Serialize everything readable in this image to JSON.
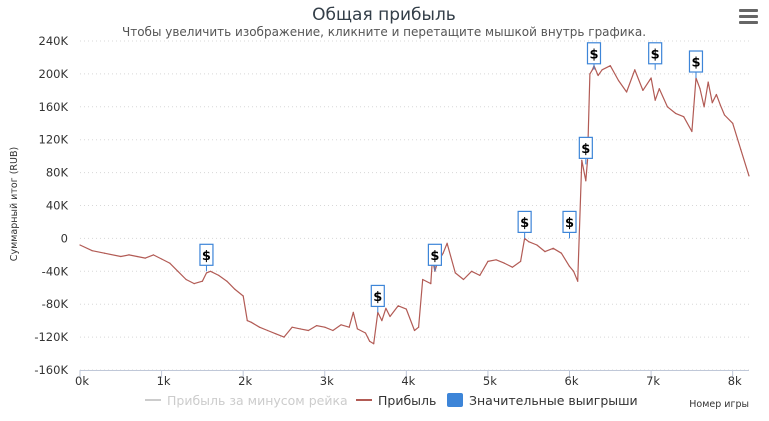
{
  "chart_data": {
    "type": "line",
    "title": "Общая прибыль",
    "subtitle": "Чтобы увеличить изображение, кликните и перетащите мышкой внутрь графика.",
    "xlabel": "Номер игры",
    "ylabel": "Суммарный итог (RUB)",
    "xlim": [
      0,
      8200
    ],
    "ylim": [
      -160000,
      240000
    ],
    "x_ticks": [
      0,
      1000,
      2000,
      3000,
      4000,
      5000,
      6000,
      7000,
      8000
    ],
    "x_tick_labels": [
      "0k",
      "1k",
      "2k",
      "3k",
      "4k",
      "5k",
      "6k",
      "7k",
      "8k"
    ],
    "y_ticks": [
      -160000,
      -120000,
      -80000,
      -40000,
      0,
      40000,
      80000,
      120000,
      160000,
      200000,
      240000
    ],
    "y_tick_labels": [
      "-160K",
      "-120K",
      "-80K",
      "-40K",
      "0",
      "40K",
      "80K",
      "120K",
      "160K",
      "200K",
      "240K"
    ],
    "grid": true,
    "legend_position": "bottom",
    "series": [
      {
        "name": "Прибыль за минусом рейка",
        "visible": false,
        "color": "#cccccc",
        "x": [],
        "y": []
      },
      {
        "name": "Прибыль",
        "visible": true,
        "color": "#b25b55",
        "x": [
          0,
          150,
          300,
          500,
          600,
          700,
          800,
          900,
          1000,
          1100,
          1200,
          1300,
          1400,
          1500,
          1550,
          1600,
          1700,
          1800,
          1900,
          2000,
          2050,
          2100,
          2200,
          2300,
          2400,
          2500,
          2600,
          2700,
          2800,
          2900,
          3000,
          3100,
          3200,
          3300,
          3350,
          3400,
          3500,
          3550,
          3600,
          3650,
          3700,
          3750,
          3800,
          3900,
          4000,
          4100,
          4150,
          4200,
          4300,
          4320,
          4350,
          4380,
          4450,
          4500,
          4600,
          4700,
          4800,
          4900,
          5000,
          5100,
          5200,
          5300,
          5400,
          5450,
          5500,
          5600,
          5700,
          5800,
          5900,
          6000,
          6050,
          6100,
          6150,
          6200,
          6220,
          6250,
          6280,
          6300,
          6350,
          6400,
          6500,
          6600,
          6700,
          6800,
          6900,
          7000,
          7050,
          7100,
          7200,
          7300,
          7400,
          7500,
          7550,
          7600,
          7650,
          7700,
          7750,
          7800,
          7850,
          7900,
          8000,
          8100,
          8200
        ],
        "y": [
          -8000,
          -15000,
          -18000,
          -22000,
          -20000,
          -22000,
          -24000,
          -20000,
          -25000,
          -30000,
          -40000,
          -50000,
          -55000,
          -52000,
          -42000,
          -40000,
          -45000,
          -52000,
          -62000,
          -70000,
          -100000,
          -102000,
          -108000,
          -112000,
          -116000,
          -120000,
          -108000,
          -110000,
          -112000,
          -106000,
          -108000,
          -112000,
          -105000,
          -108000,
          -90000,
          -110000,
          -115000,
          -125000,
          -128000,
          -90000,
          -100000,
          -85000,
          -95000,
          -82000,
          -86000,
          -112000,
          -108000,
          -50000,
          -55000,
          -25000,
          -40000,
          -30000,
          -18000,
          -6000,
          -42000,
          -50000,
          -40000,
          -45000,
          -28000,
          -26000,
          -30000,
          -35000,
          -28000,
          0,
          -4000,
          -8000,
          -16000,
          -12000,
          -18000,
          -34000,
          -40000,
          -52000,
          95000,
          70000,
          95000,
          200000,
          205000,
          210000,
          198000,
          205000,
          210000,
          192000,
          178000,
          205000,
          180000,
          195000,
          168000,
          182000,
          160000,
          152000,
          148000,
          130000,
          195000,
          182000,
          160000,
          190000,
          165000,
          175000,
          162000,
          150000,
          140000,
          108000,
          76000
        ]
      }
    ],
    "markers": {
      "name": "Значительные выигрыши",
      "symbol": "$",
      "color": "#3d85d8",
      "points": [
        {
          "x": 1550,
          "y": -40000
        },
        {
          "x": 3650,
          "y": -90000
        },
        {
          "x": 4350,
          "y": -40000
        },
        {
          "x": 5450,
          "y": 0
        },
        {
          "x": 6000,
          "y": 0
        },
        {
          "x": 6200,
          "y": 90000
        },
        {
          "x": 6300,
          "y": 205000
        },
        {
          "x": 7050,
          "y": 205000
        },
        {
          "x": 7550,
          "y": 195000
        }
      ]
    }
  },
  "menu": {
    "icon": "hamburger-menu-icon"
  }
}
